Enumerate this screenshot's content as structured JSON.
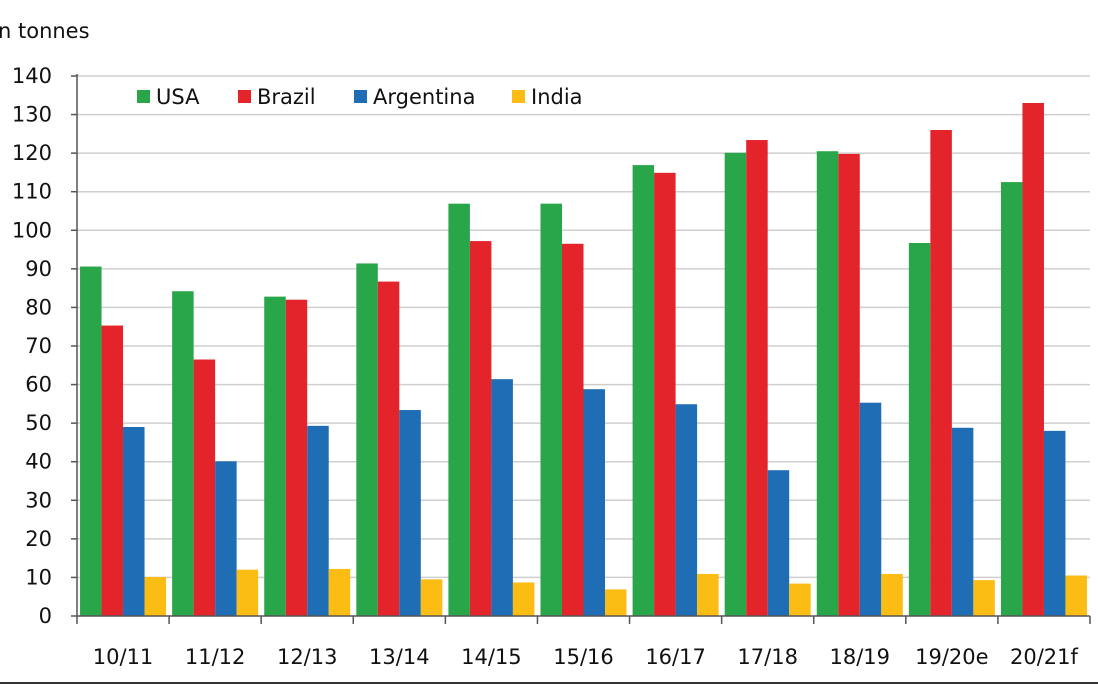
{
  "chart_data": {
    "type": "bar",
    "title": "",
    "ylabel": "n tonnes",
    "xlabel": "",
    "ylim": [
      0,
      140
    ],
    "yticks": [
      0,
      10,
      20,
      30,
      40,
      50,
      60,
      70,
      80,
      90,
      100,
      110,
      120,
      130,
      140
    ],
    "grid": true,
    "legend_position": "top-left",
    "categories": [
      "10/11",
      "11/12",
      "12/13",
      "13/14",
      "14/15",
      "15/16",
      "16/17",
      "17/18",
      "18/19",
      "19/20e",
      "20/21f"
    ],
    "series": [
      {
        "name": "USA",
        "color": "#2aa64a",
        "values": [
          90.6,
          84.2,
          82.8,
          91.4,
          106.9,
          106.9,
          116.9,
          120.1,
          120.5,
          96.7,
          112.5
        ]
      },
      {
        "name": "Brazil",
        "color": "#e3252b",
        "values": [
          75.3,
          66.5,
          82.0,
          86.7,
          97.2,
          96.5,
          114.9,
          123.4,
          119.8,
          126.0,
          133.0
        ]
      },
      {
        "name": "Argentina",
        "color": "#1f6db5",
        "values": [
          49.0,
          40.1,
          49.3,
          53.4,
          61.4,
          58.8,
          54.9,
          37.8,
          55.3,
          48.8,
          48.0
        ]
      },
      {
        "name": "India",
        "color": "#fbbc14",
        "values": [
          10.1,
          12.0,
          12.2,
          9.5,
          8.7,
          6.9,
          10.9,
          8.4,
          10.9,
          9.3,
          10.5
        ]
      }
    ]
  }
}
